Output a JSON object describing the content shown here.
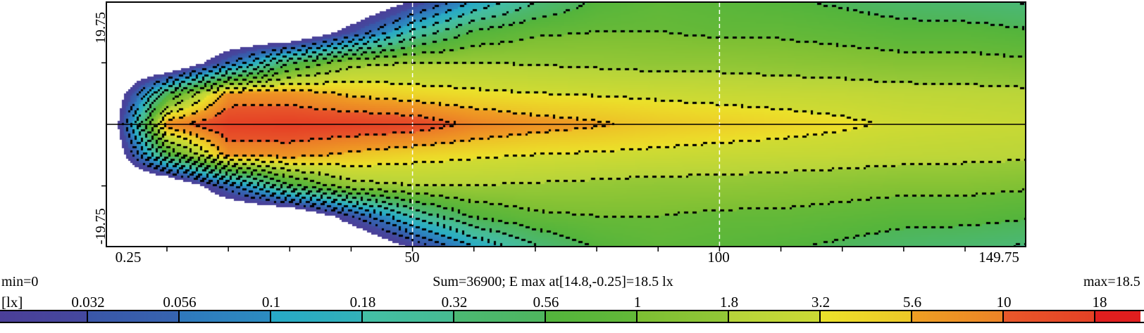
{
  "chart_data": {
    "type": "heatmap",
    "title": "",
    "xlabel": "",
    "ylabel": "",
    "xlim": [
      0.25,
      149.75
    ],
    "ylim": [
      -19.75,
      19.75
    ],
    "x_tick_labels": [
      "0.25",
      "50",
      "100",
      "149.75"
    ],
    "y_tick_labels": [
      "19.75",
      "-19.75"
    ],
    "x_minor_tick_step": 10,
    "y_minor_tick_step": 10,
    "dashed_reference_lines_x": [
      50,
      100
    ],
    "center_line_y": 0,
    "unit_label": "[lx]",
    "min_label": "min=0",
    "max_label": "max=18.5",
    "summary": "Sum=36900; E max at[14.8,-0.25]=18.5 lx",
    "colorbar": {
      "levels": [
        "0.032",
        "0.056",
        "0.1",
        "0.18",
        "0.32",
        "0.56",
        "1",
        "1.8",
        "3.2",
        "5.6",
        "10",
        "18"
      ],
      "colors": [
        "#4b3f98",
        "#3a56a8",
        "#2f78bc",
        "#27a9c6",
        "#43bea6",
        "#4bb874",
        "#52b43c",
        "#7cbf33",
        "#b6d43a",
        "#ebe22a",
        "#efa023",
        "#e8582a",
        "#e01e1e"
      ],
      "scale": "log"
    },
    "grid": {
      "x": [
        0,
        10,
        20,
        30,
        40,
        50,
        60,
        70,
        80,
        90,
        100,
        110,
        120,
        130,
        140,
        150
      ],
      "y": [
        -20,
        -15,
        -10,
        -5,
        0,
        5,
        10,
        15,
        20
      ],
      "values_lx": [
        [
          0,
          0,
          0,
          0,
          0,
          0.02,
          0.1,
          0.3,
          0.6,
          0.8,
          0.7,
          0.6,
          0.5,
          0.4,
          0.35,
          0.3
        ],
        [
          0,
          0,
          0,
          0,
          0.03,
          0.2,
          0.6,
          0.9,
          1.0,
          1.0,
          0.9,
          0.9,
          0.8,
          0.7,
          0.7,
          0.6
        ],
        [
          0,
          0,
          0.05,
          0.5,
          1.5,
          1.8,
          1.8,
          1.7,
          1.6,
          1.5,
          1.5,
          1.4,
          1.3,
          1.2,
          1.2,
          1.1
        ],
        [
          0,
          0.5,
          7,
          7,
          5,
          4,
          3.5,
          3.2,
          3,
          2.8,
          2.6,
          2.5,
          2.4,
          2.2,
          2.1,
          2.0
        ],
        [
          0,
          8,
          16,
          17,
          16,
          14,
          9,
          7,
          6,
          5,
          4.5,
          4,
          3.5,
          3,
          2.8,
          2.6
        ],
        [
          0,
          0.5,
          7,
          7,
          5,
          4,
          3.5,
          3.2,
          3,
          2.8,
          2.6,
          2.5,
          2.4,
          2.2,
          2.1,
          2.0
        ],
        [
          0,
          0,
          0.05,
          0.5,
          1.5,
          1.8,
          1.8,
          1.7,
          1.6,
          1.5,
          1.5,
          1.4,
          1.3,
          1.2,
          1.2,
          1.1
        ],
        [
          0,
          0,
          0,
          0,
          0.03,
          0.2,
          0.6,
          0.9,
          1.0,
          1.0,
          0.9,
          0.9,
          0.8,
          0.7,
          0.7,
          0.6
        ],
        [
          0,
          0,
          0,
          0,
          0,
          0.02,
          0.1,
          0.3,
          0.6,
          0.8,
          0.7,
          0.6,
          0.5,
          0.4,
          0.35,
          0.3
        ]
      ]
    }
  }
}
